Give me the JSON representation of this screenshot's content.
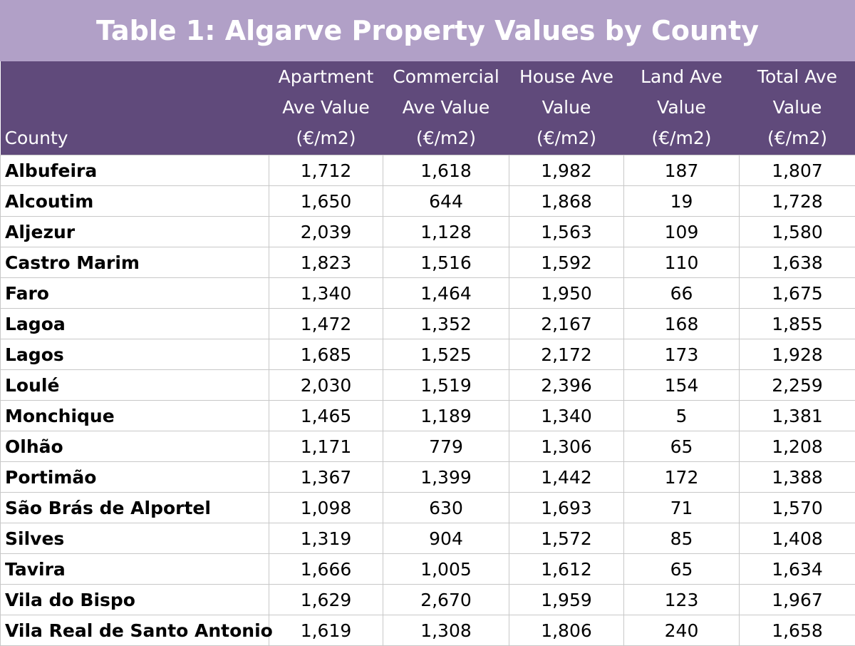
{
  "title": "Table 1: Algarve Property Values by County",
  "chart_data": {
    "type": "table",
    "title": "Table 1: Algarve Property Values by County",
    "columns": [
      "County",
      "Apartment Ave Value (€/m2)",
      "Commercial Ave Value (€/m2)",
      "House Ave Value (€/m2)",
      "Land Ave Value (€/m2)",
      "Total Ave Value (€/m2)"
    ],
    "rows": [
      [
        "Albufeira",
        "1,712",
        "1,618",
        "1,982",
        "187",
        "1,807"
      ],
      [
        "Alcoutim",
        "1,650",
        "644",
        "1,868",
        "19",
        "1,728"
      ],
      [
        "Aljezur",
        "2,039",
        "1,128",
        "1,563",
        "109",
        "1,580"
      ],
      [
        "Castro Marim",
        "1,823",
        "1,516",
        "1,592",
        "110",
        "1,638"
      ],
      [
        "Faro",
        "1,340",
        "1,464",
        "1,950",
        "66",
        "1,675"
      ],
      [
        "Lagoa",
        "1,472",
        "1,352",
        "2,167",
        "168",
        "1,855"
      ],
      [
        "Lagos",
        "1,685",
        "1,525",
        "2,172",
        "173",
        "1,928"
      ],
      [
        "Loulé",
        "2,030",
        "1,519",
        "2,396",
        "154",
        "2,259"
      ],
      [
        "Monchique",
        "1,465",
        "1,189",
        "1,340",
        "5",
        "1,381"
      ],
      [
        "Olhão",
        "1,171",
        "779",
        "1,306",
        "65",
        "1,208"
      ],
      [
        "Portimão",
        "1,367",
        "1,399",
        "1,442",
        "172",
        "1,388"
      ],
      [
        "São Brás de Alportel",
        "1,098",
        "630",
        "1,693",
        "71",
        "1,570"
      ],
      [
        "Silves",
        "1,319",
        "904",
        "1,572",
        "85",
        "1,408"
      ],
      [
        "Tavira",
        "1,666",
        "1,005",
        "1,612",
        "65",
        "1,634"
      ],
      [
        "Vila do Bispo",
        "1,629",
        "2,670",
        "1,959",
        "123",
        "1,967"
      ],
      [
        "Vila Real de Santo Antonio",
        "1,619",
        "1,308",
        "1,806",
        "240",
        "1,658"
      ]
    ]
  },
  "colors": {
    "title_bg": "#b1a0c7",
    "header_bg": "#604a7b",
    "grid": "#c8c8c8"
  }
}
